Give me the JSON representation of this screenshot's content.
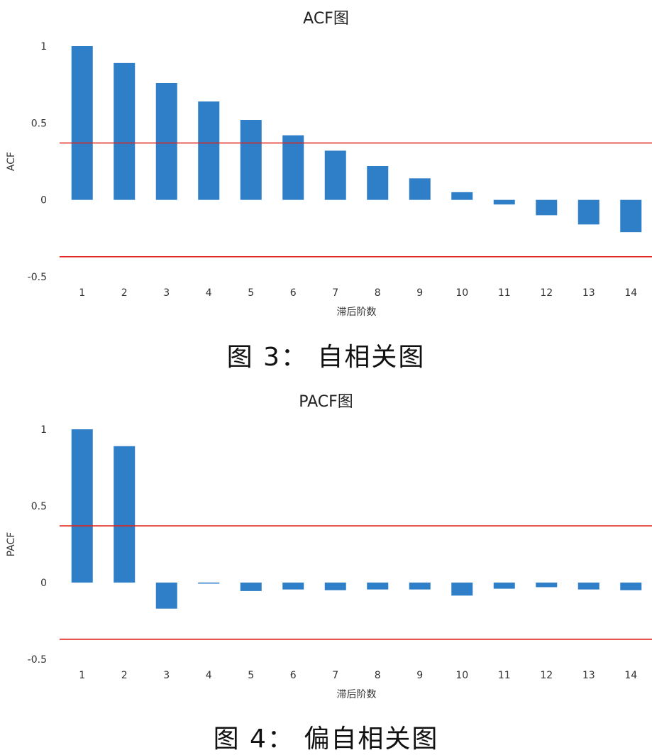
{
  "chart_data": [
    {
      "type": "bar",
      "title": "ACF图",
      "xlabel": "滞后阶数",
      "ylabel": "ACF",
      "ylim": [
        -0.5,
        1
      ],
      "yticks": [
        "1",
        "0.5",
        "0",
        "-0.5"
      ],
      "categories": [
        "1",
        "2",
        "3",
        "4",
        "5",
        "6",
        "7",
        "8",
        "9",
        "10",
        "11",
        "12",
        "13",
        "14"
      ],
      "values": [
        1.0,
        0.89,
        0.76,
        0.64,
        0.52,
        0.42,
        0.32,
        0.22,
        0.14,
        0.05,
        -0.03,
        -0.1,
        -0.16,
        -0.21
      ],
      "confidence_bounds": [
        0.37,
        -0.37
      ],
      "bar_color": "#2f7ec8",
      "bound_color": "#e0241b",
      "caption": "图 3： 自相关图"
    },
    {
      "type": "bar",
      "title": "PACF图",
      "xlabel": "滞后阶数",
      "ylabel": "PACF",
      "ylim": [
        -0.5,
        1
      ],
      "yticks": [
        "1",
        "0.5",
        "0",
        "-0.5"
      ],
      "categories": [
        "1",
        "2",
        "3",
        "4",
        "5",
        "6",
        "7",
        "8",
        "9",
        "10",
        "11",
        "12",
        "13",
        "14"
      ],
      "values": [
        1.0,
        0.89,
        -0.17,
        -0.005,
        -0.055,
        -0.045,
        -0.05,
        -0.045,
        -0.045,
        -0.085,
        -0.04,
        -0.03,
        -0.045,
        -0.05
      ],
      "confidence_bounds": [
        0.37,
        -0.37
      ],
      "bar_color": "#2f7ec8",
      "bound_color": "#e0241b",
      "caption": "图 4： 偏自相关图"
    }
  ]
}
